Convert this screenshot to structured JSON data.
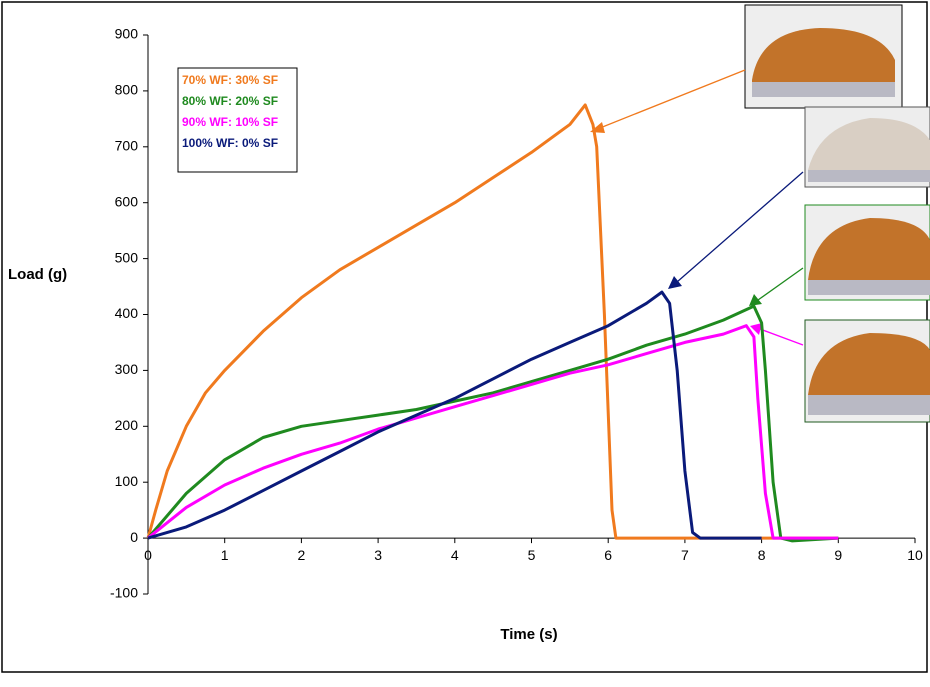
{
  "chart_data": {
    "type": "line",
    "x_label": "Time (s)",
    "y_label": "Load (g)",
    "xlim": [
      0,
      10
    ],
    "xticks": [
      0,
      1,
      2,
      3,
      4,
      5,
      6,
      7,
      8,
      9,
      10
    ],
    "ylim": [
      -100,
      900
    ],
    "yticks": [
      -100,
      0,
      100,
      200,
      300,
      400,
      500,
      600,
      700,
      800,
      900
    ],
    "grid": false,
    "legend": "upper left",
    "series": [
      {
        "name": "70% WF: 30% SF",
        "color": "#f07a1e",
        "x": [
          0,
          0.1,
          0.25,
          0.5,
          0.75,
          1,
          1.5,
          2,
          2.5,
          3,
          3.5,
          4,
          4.5,
          5,
          5.5,
          5.7,
          5.8,
          5.85,
          5.95,
          6.05,
          6.1,
          7,
          8,
          9
        ],
        "values": [
          0,
          50,
          120,
          200,
          260,
          300,
          370,
          430,
          480,
          520,
          560,
          600,
          645,
          690,
          740,
          775,
          740,
          700,
          400,
          50,
          0,
          0,
          0,
          0
        ]
      },
      {
        "name": "80% WF: 20% SF",
        "color": "#1f8a1f",
        "x": [
          0,
          0.5,
          1,
          1.5,
          2,
          2.5,
          3,
          3.5,
          4,
          4.5,
          5,
          5.5,
          6,
          6.5,
          7,
          7.5,
          7.9,
          8,
          8.05,
          8.15,
          8.25,
          8.4,
          9
        ],
        "values": [
          0,
          80,
          140,
          180,
          200,
          210,
          220,
          230,
          245,
          260,
          280,
          300,
          320,
          345,
          365,
          390,
          415,
          385,
          300,
          100,
          0,
          -5,
          0
        ]
      },
      {
        "name": "90% WF: 10% SF",
        "color": "#ff00ff",
        "x": [
          0,
          0.5,
          1,
          1.5,
          2,
          2.5,
          3,
          3.5,
          4,
          4.5,
          5,
          5.5,
          6,
          6.5,
          7,
          7.5,
          7.8,
          7.9,
          7.95,
          8.05,
          8.15,
          9
        ],
        "values": [
          0,
          55,
          95,
          125,
          150,
          170,
          195,
          215,
          235,
          255,
          275,
          295,
          310,
          330,
          350,
          365,
          380,
          360,
          250,
          80,
          0,
          0
        ]
      },
      {
        "name": "100% WF: 0% SF",
        "color": "#0a1a7a",
        "x": [
          0,
          0.5,
          1,
          1.5,
          2,
          2.5,
          3,
          3.5,
          4,
          4.5,
          5,
          5.5,
          6,
          6.5,
          6.7,
          6.8,
          6.9,
          7,
          7.1,
          7.2,
          8
        ],
        "values": [
          0,
          20,
          50,
          85,
          120,
          155,
          190,
          220,
          250,
          285,
          320,
          350,
          380,
          420,
          440,
          420,
          300,
          120,
          10,
          0,
          0
        ]
      }
    ]
  }
}
